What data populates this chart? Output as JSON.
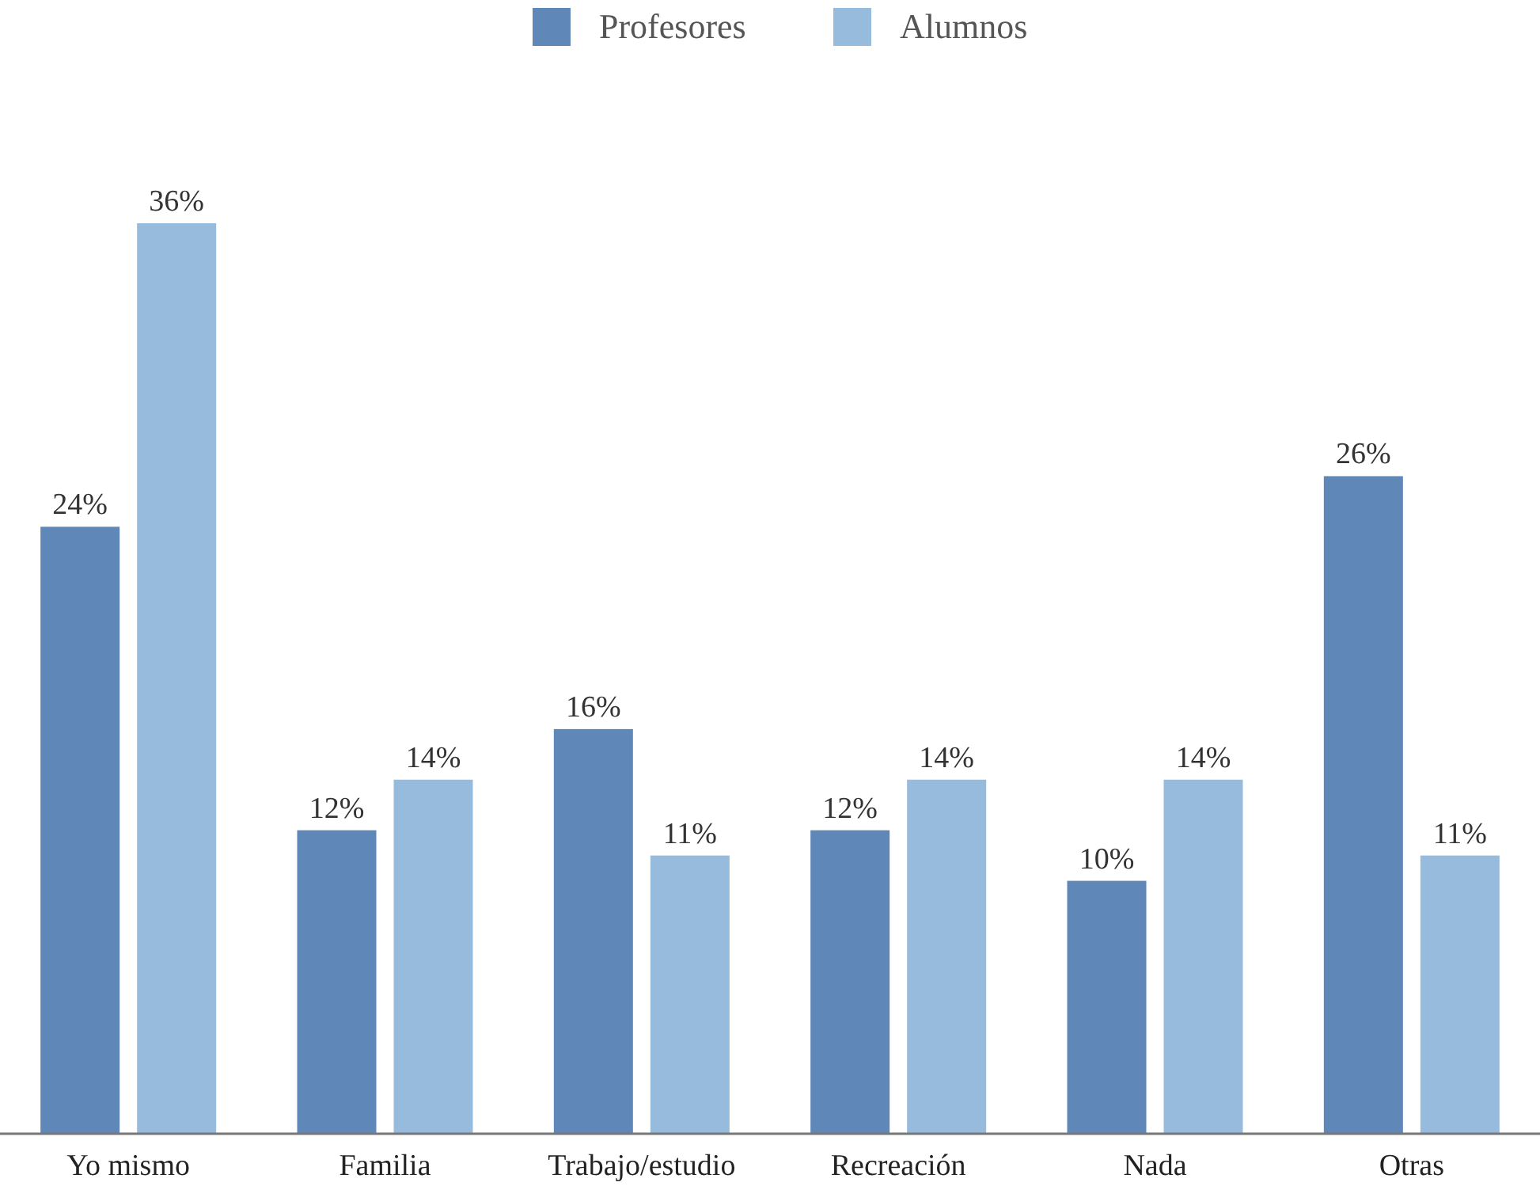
{
  "chart_data": {
    "type": "bar",
    "categories": [
      "Yo mismo",
      "Familia",
      "Trabajo/estudio",
      "Recreación",
      "Nada",
      "Otras"
    ],
    "series": [
      {
        "name": "Profesores",
        "color": "#5f87b8",
        "values": [
          24,
          12,
          16,
          12,
          10,
          26
        ],
        "value_labels": [
          "24%",
          "12%",
          "16%",
          "12%",
          "10%",
          "26%"
        ]
      },
      {
        "name": "Alumnos",
        "color": "#97bbdc",
        "values": [
          36,
          14,
          11,
          14,
          14,
          11
        ],
        "value_labels": [
          "36%",
          "14%",
          "11%",
          "14%",
          "14%",
          "11%"
        ]
      }
    ],
    "legend": "top",
    "tick_labels": "x"
  }
}
